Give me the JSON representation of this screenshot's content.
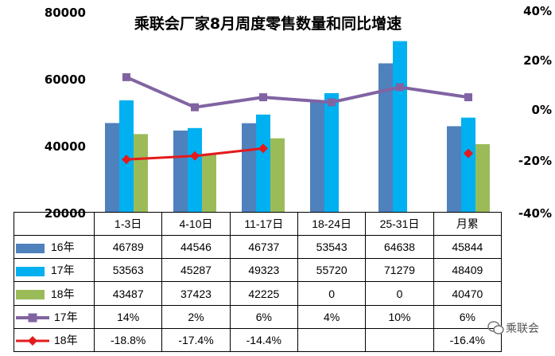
{
  "chart_data": {
    "type": "bar",
    "title": "乘联会厂家8月周度零售数量和同比增速",
    "categories": [
      "1-3日",
      "4-10日",
      "11-17日",
      "18-24日",
      "25-31日",
      "月累"
    ],
    "left_axis": {
      "ylim": [
        20000,
        80000
      ],
      "ticks": [
        "20000",
        "40000",
        "60000",
        "80000"
      ]
    },
    "right_axis": {
      "ylim": [
        -40,
        40
      ],
      "ticks": [
        "-40%",
        "-20%",
        "0%",
        "20%",
        "40%"
      ]
    },
    "bar_series": [
      {
        "name": "16年",
        "color": "#4f81bd",
        "values": [
          46789,
          44546,
          46737,
          53543,
          64638,
          45844
        ],
        "labels": [
          "46789",
          "44546",
          "46737",
          "53543",
          "64638",
          "45844"
        ]
      },
      {
        "name": "17年",
        "color": "#00b0f0",
        "values": [
          53563,
          45287,
          49323,
          55720,
          71279,
          48409
        ],
        "labels": [
          "53563",
          "45287",
          "49323",
          "55720",
          "71279",
          "48409"
        ]
      },
      {
        "name": "18年",
        "color": "#9bbb59",
        "values": [
          43487,
          37423,
          42225,
          0,
          0,
          40470
        ],
        "labels": [
          "43487",
          "37423",
          "42225",
          "0",
          "0",
          "40470"
        ]
      }
    ],
    "line_series": [
      {
        "name": "17年",
        "color": "#8064a2",
        "marker": "square",
        "values": [
          14,
          2,
          6,
          4,
          10,
          6
        ],
        "labels": [
          "14%",
          "2%",
          "6%",
          "4%",
          "10%",
          "6%"
        ]
      },
      {
        "name": "18年",
        "color": "#e41a1c",
        "marker": "diamond",
        "values": [
          -18.8,
          -17.4,
          -14.4,
          null,
          null,
          -16.4
        ],
        "labels": [
          "-18.8%",
          "-17.4%",
          "-14.4%",
          "",
          "",
          "-16.4%"
        ],
        "connected_points": 3
      }
    ],
    "grid": false,
    "legend": "data-table"
  },
  "watermark": "乘联会"
}
